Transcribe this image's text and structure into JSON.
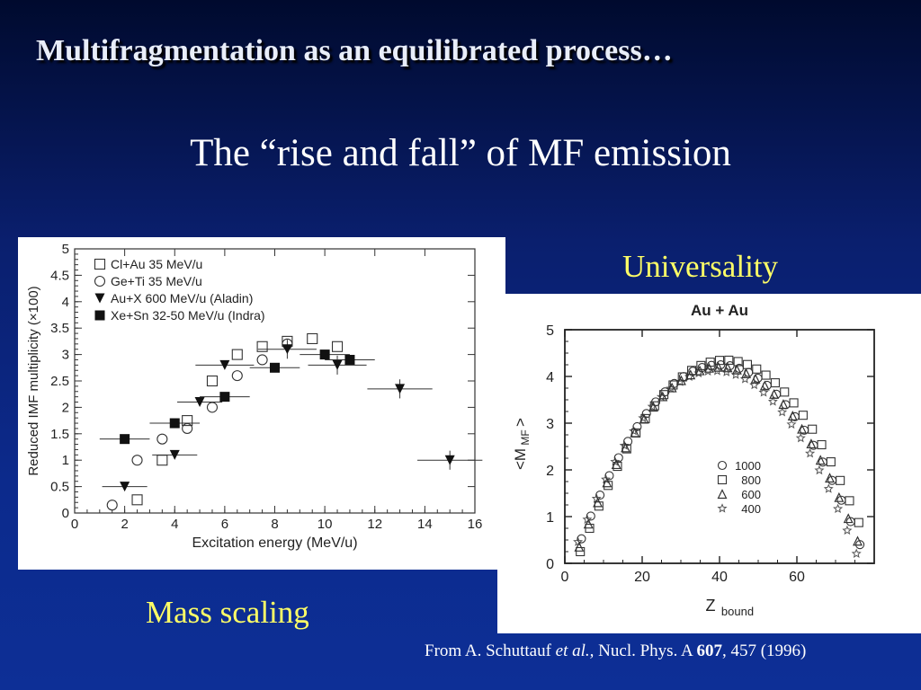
{
  "slide": {
    "title": "Multifragmentation as an equilibrated process…",
    "subtitle": "The “rise and fall” of MF emission",
    "label_universality": "Universality",
    "label_mass_scaling": "Mass scaling",
    "reference": {
      "prefix": "From A. Schuttauf ",
      "etal": "et al.,",
      "journal": " Nucl. Phys. A ",
      "volume": "607",
      "rest": ", 457 (1996)"
    }
  },
  "chart_data": [
    {
      "type": "scatter",
      "title": "",
      "xlabel": "Excitation energy (MeV/u)",
      "ylabel": "Reduced IMF multiplicity (×100)",
      "xlim": [
        0,
        16
      ],
      "ylim": [
        0,
        5
      ],
      "xticks": [
        "0",
        "2",
        "4",
        "6",
        "8",
        "10",
        "12",
        "14",
        "16"
      ],
      "yticks": [
        "0",
        "0.5",
        "1",
        "1.5",
        "2",
        "2.5",
        "3",
        "3.5",
        "4",
        "4.5",
        "5"
      ],
      "legend_position": "top-left",
      "series": [
        {
          "name": "Cl+Au 35 MeV/u",
          "marker": "open-square",
          "points": [
            [
              2.5,
              0.25
            ],
            [
              3.5,
              1.0
            ],
            [
              4.5,
              1.75
            ],
            [
              5.5,
              2.5
            ],
            [
              6.5,
              3.0
            ],
            [
              7.5,
              3.15
            ],
            [
              8.5,
              3.25
            ],
            [
              9.5,
              3.3
            ],
            [
              10.5,
              3.15
            ]
          ]
        },
        {
          "name": "Ge+Ti 35 MeV/u",
          "marker": "open-circle",
          "points": [
            [
              1.5,
              0.15
            ],
            [
              2.5,
              1.0
            ],
            [
              3.5,
              1.4
            ],
            [
              4.5,
              1.6
            ],
            [
              5.5,
              2.0
            ],
            [
              6.5,
              2.6
            ],
            [
              7.5,
              2.9
            ],
            [
              8.5,
              3.2
            ]
          ]
        },
        {
          "name": "Au+X 600 MeV/u (Aladin)",
          "marker": "filled-triangle-down",
          "points": [
            [
              2.0,
              0.5
            ],
            [
              4.0,
              1.1
            ],
            [
              5.0,
              2.1
            ],
            [
              6.0,
              2.8
            ],
            [
              8.5,
              3.1
            ],
            [
              10.5,
              2.8
            ],
            [
              13.0,
              2.35
            ],
            [
              15.0,
              1.0
            ]
          ]
        },
        {
          "name": "Xe+Sn 32-50 MeV/u (Indra)",
          "marker": "filled-square",
          "points": [
            [
              2.0,
              1.4
            ],
            [
              4.0,
              1.7
            ],
            [
              6.0,
              2.2
            ],
            [
              8.0,
              2.75
            ],
            [
              10.0,
              3.0
            ],
            [
              11.0,
              2.9
            ]
          ]
        }
      ]
    },
    {
      "type": "scatter",
      "title": "Au + Au",
      "xlabel": "Z",
      "xlabel_sub": "bound",
      "ylabel": "<M",
      "ylabel_sub": "MF",
      "ylabel_end": ">",
      "xlim": [
        0,
        80
      ],
      "ylim": [
        0,
        5
      ],
      "xticks": [
        "0",
        "20",
        "40",
        "60"
      ],
      "yticks": [
        "0",
        "1",
        "2",
        "3",
        "4",
        "5"
      ],
      "legend_position": "center-right",
      "series": [
        {
          "name": "1000",
          "marker": "open-circle"
        },
        {
          "name": "800",
          "marker": "open-square"
        },
        {
          "name": "600",
          "marker": "open-triangle"
        },
        {
          "name": "400",
          "marker": "open-star"
        }
      ],
      "curve": "<M_MF> rises from ~0.3 at Z_bound≈4 to a maximum ≈4.3 at Z_bound≈40 and falls to ~0.5 at Z_bound≈76"
    }
  ]
}
